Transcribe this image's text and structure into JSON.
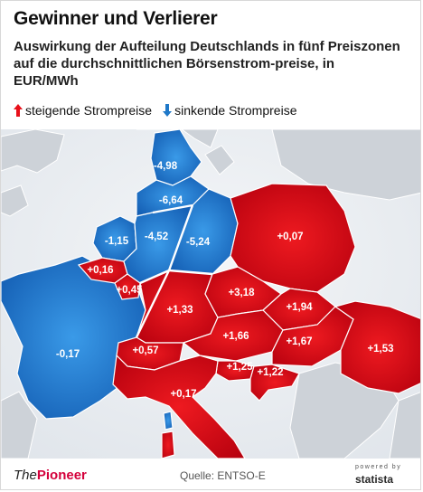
{
  "header": {
    "title": "Gewinner und Verlierer",
    "subtitle": "Auswirkung der Aufteilung Deutschlands in fünf Preiszonen auf die durchschnittlichen Börsenstrom-preise, in EUR/MWh"
  },
  "legend": {
    "up_label": "steigende Strompreise",
    "down_label": "sinkende Strompreise",
    "up_color": "#e8101a",
    "down_color": "#1e78c8"
  },
  "regions": [
    {
      "id": "dk",
      "label": "-4,98"
    },
    {
      "id": "de-north",
      "label": "-6,64"
    },
    {
      "id": "nl",
      "label": "-1,15"
    },
    {
      "id": "de-nw",
      "label": "-4,52"
    },
    {
      "id": "de-ne",
      "label": "-5,24"
    },
    {
      "id": "pl",
      "label": "+0,07"
    },
    {
      "id": "be",
      "label": "+0,16"
    },
    {
      "id": "lu",
      "label": "+0,45"
    },
    {
      "id": "cz",
      "label": "+3,18"
    },
    {
      "id": "de-south",
      "label": "+1,33"
    },
    {
      "id": "sk",
      "label": "+1,94"
    },
    {
      "id": "fr",
      "label": "-0,17"
    },
    {
      "id": "ch",
      "label": "+0,57"
    },
    {
      "id": "at",
      "label": "+1,66"
    },
    {
      "id": "hu",
      "label": "+1,67"
    },
    {
      "id": "ro",
      "label": "+1,53"
    },
    {
      "id": "si",
      "label": "+1,25"
    },
    {
      "id": "hr",
      "label": "+1,22"
    },
    {
      "id": "it",
      "label": "+0,17"
    }
  ],
  "footer": {
    "brand_prefix": "The",
    "brand_name": "Pioneer",
    "source": "Quelle: ENTSO-E",
    "powered_by": "powered by",
    "statista": "statista"
  }
}
